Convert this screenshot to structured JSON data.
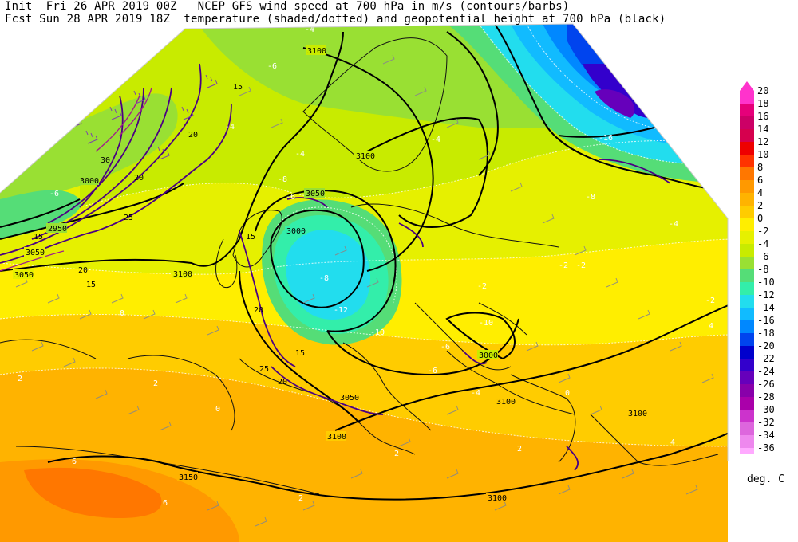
{
  "header": {
    "line1": "Init  Fri 26 APR 2019 00Z   NCEP GFS wind speed at 700 hPa in m/s (contours/barbs)",
    "line2": "Fcst Sun 28 APR 2019 18Z  temperature (shaded/dotted) and geopotential height at 700 hPa (black)"
  },
  "legend": {
    "units": "deg. C",
    "levels": [
      "20",
      "18",
      "16",
      "14",
      "12",
      "10",
      "8",
      "6",
      "4",
      "2",
      "0",
      "-2",
      "-4",
      "-6",
      "-8",
      "-10",
      "-12",
      "-14",
      "-16",
      "-18",
      "-20",
      "-22",
      "-24",
      "-26",
      "-28",
      "-30",
      "-32",
      "-34",
      "-36"
    ],
    "colors": [
      "#ff33cc",
      "#e6007a",
      "#cc0066",
      "#d6004e",
      "#ee0000",
      "#ff3300",
      "#ff7700",
      "#ff9900",
      "#ffb300",
      "#ffcc00",
      "#ffee00",
      "#e6f000",
      "#c8eb00",
      "#99e033",
      "#55dd77",
      "#33eeaa",
      "#22ddee",
      "#11bbff",
      "#0088ff",
      "#0044ee",
      "#0000cc",
      "#3300cc",
      "#6600bb",
      "#8800aa",
      "#aa00aa",
      "#cc33cc",
      "#dd66dd",
      "#ee88ee",
      "#ffaaff"
    ]
  },
  "height_labels": [
    "3100",
    "3100",
    "3050",
    "3000",
    "3100",
    "3000",
    "3050",
    "3100",
    "3100",
    "3100",
    "3150",
    "2950",
    "3050",
    "3000",
    "3050",
    "3100"
  ],
  "wind_labels": [
    "15",
    "20",
    "25",
    "30",
    "20",
    "15",
    "20",
    "15",
    "20",
    "15",
    "20",
    "15",
    "25"
  ],
  "temp_labels": [
    "-4",
    "-4",
    "-6",
    "-8",
    "-6",
    "-4",
    "-8",
    "-6",
    "-10",
    "-12",
    "-10",
    "-8",
    "-6",
    "-2",
    "-2",
    "-4",
    "-6",
    "-4",
    "-2",
    "-2",
    "0",
    "2",
    "2",
    "0",
    "2",
    "4",
    "2",
    "2",
    "6",
    "4",
    "6",
    "0",
    "-16",
    "-4"
  ]
}
